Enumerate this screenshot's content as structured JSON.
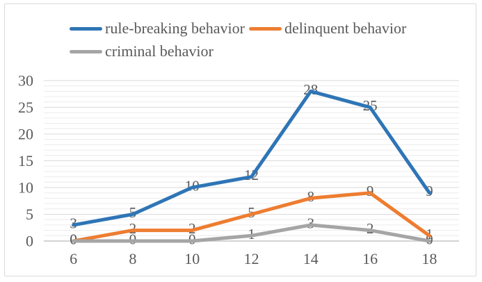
{
  "legend": {
    "items": [
      {
        "label": "rule-breaking behavior",
        "color": "#2e75b6"
      },
      {
        "label": "delinquent behavior",
        "color": "#ed7d31"
      },
      {
        "label": "criminal behavior",
        "color": "#a5a5a5"
      }
    ]
  },
  "chart_data": {
    "type": "line",
    "title": "",
    "xlabel": "",
    "ylabel": "",
    "categories": [
      6,
      8,
      10,
      12,
      14,
      16,
      18
    ],
    "series": [
      {
        "name": "rule-breaking behavior",
        "color": "#2e75b6",
        "values": [
          3,
          5,
          10,
          12,
          28,
          25,
          9
        ]
      },
      {
        "name": "delinquent behavior",
        "color": "#ed7d31",
        "values": [
          0,
          2,
          2,
          5,
          8,
          9,
          1
        ]
      },
      {
        "name": "criminal behavior",
        "color": "#a5a5a5",
        "values": [
          0,
          0,
          0,
          1,
          3,
          2,
          0
        ]
      }
    ],
    "y_ticks": [
      0,
      5,
      10,
      15,
      20,
      25,
      30
    ],
    "ylim": [
      0,
      30
    ],
    "grid": {
      "minor_interval": 1,
      "major_interval": 5
    },
    "data_labels": true,
    "legend_position": "top-left"
  },
  "colors": {
    "axis_text": "#595959",
    "data_label_text": "#595959",
    "major_grid": "#d9d9d9",
    "minor_grid": "#ececec",
    "axis_line": "#c6c6c6",
    "frame_border": "#d9d9d9",
    "background": "#ffffff"
  }
}
